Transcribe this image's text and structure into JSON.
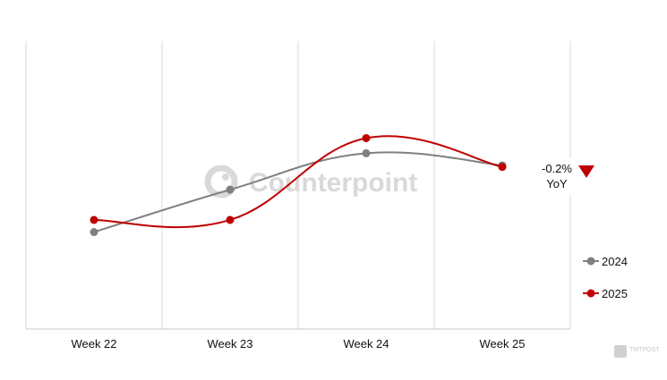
{
  "watermark": "Counterpoint",
  "corner_badge": "TMTPOST",
  "chart_data": {
    "type": "line",
    "categories": [
      "Week 22",
      "Week 23",
      "Week 24",
      "Week 25"
    ],
    "series": [
      {
        "name": "2024",
        "values": [
          62,
          76,
          88,
          84
        ],
        "color": "#808080"
      },
      {
        "name": "2025",
        "values": [
          66,
          66,
          93,
          83.5
        ],
        "color": "#c00000"
      }
    ],
    "ylim": [
      30,
      125
    ],
    "grid": "vertical",
    "legend_position": "right",
    "annotation": {
      "value": "-0.2%",
      "label": "YoY",
      "direction": "down",
      "color": "#c00000"
    }
  }
}
